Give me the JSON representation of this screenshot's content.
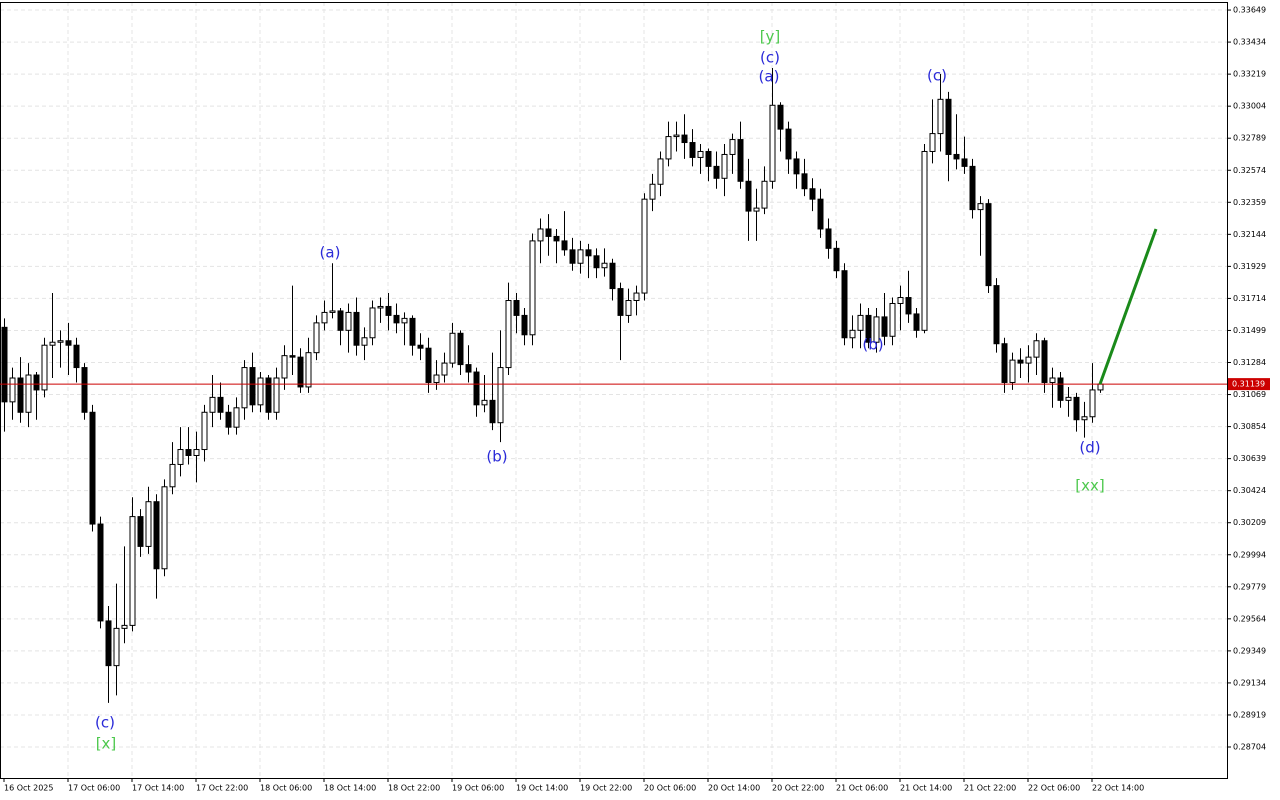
{
  "chart_data": {
    "type": "candlestick",
    "ylim": [
      0.28496,
      0.33703
    ],
    "yticks": [
      0.33649,
      0.33434,
      0.33219,
      0.33004,
      0.32789,
      0.32574,
      0.32359,
      0.32144,
      0.31929,
      0.31714,
      0.31499,
      0.31284,
      0.31069,
      0.30854,
      0.30639,
      0.30424,
      0.30209,
      0.29994,
      0.29779,
      0.29564,
      0.29349,
      0.29134,
      0.28919,
      0.28704
    ],
    "grid": true,
    "bull_color": "#ffffff",
    "bear_color": "#000000",
    "categories": [
      "16 Oct 2025",
      null,
      null,
      null,
      null,
      null,
      null,
      null,
      "17 Oct 06:00",
      null,
      null,
      null,
      null,
      null,
      null,
      null,
      "17 Oct 14:00",
      null,
      null,
      null,
      null,
      null,
      null,
      null,
      "17 Oct 22:00",
      null,
      null,
      null,
      null,
      null,
      null,
      null,
      "18 Oct 06:00",
      null,
      null,
      null,
      null,
      null,
      null,
      null,
      "18 Oct 14:00",
      null,
      null,
      null,
      null,
      null,
      null,
      null,
      "18 Oct 22:00",
      null,
      null,
      null,
      null,
      null,
      null,
      null,
      "19 Oct 06:00",
      null,
      null,
      null,
      null,
      null,
      null,
      null,
      "19 Oct 14:00",
      null,
      null,
      null,
      null,
      null,
      null,
      null,
      "19 Oct 22:00",
      null,
      null,
      null,
      null,
      null,
      null,
      null,
      "20 Oct 06:00",
      null,
      null,
      null,
      null,
      null,
      null,
      null,
      "20 Oct 14:00",
      null,
      null,
      null,
      null,
      null,
      null,
      null,
      "20 Oct 22:00",
      null,
      null,
      null,
      null,
      null,
      null,
      null,
      "21 Oct 06:00",
      null,
      null,
      null,
      null,
      null,
      null,
      null,
      "21 Oct 14:00",
      null,
      null,
      null,
      null,
      null,
      null,
      null,
      "21 Oct 22:00",
      null,
      null,
      null,
      null,
      null,
      null,
      null,
      "22 Oct 06:00",
      null,
      null,
      null,
      null,
      null,
      null,
      null,
      "22 Oct 14:00",
      null
    ],
    "ohlc": [
      [
        0.3152,
        0.3158,
        0.3082,
        0.3102
      ],
      [
        0.3102,
        0.3125,
        0.309,
        0.3118
      ],
      [
        0.3118,
        0.3132,
        0.3088,
        0.3095
      ],
      [
        0.3095,
        0.3128,
        0.3085,
        0.312
      ],
      [
        0.312,
        0.3122,
        0.309,
        0.311
      ],
      [
        0.311,
        0.3145,
        0.3105,
        0.314
      ],
      [
        0.314,
        0.3175,
        0.3118,
        0.3142
      ],
      [
        0.3142,
        0.315,
        0.3125,
        0.3143
      ],
      [
        0.3143,
        0.3155,
        0.312,
        0.314
      ],
      [
        0.314,
        0.3145,
        0.3115,
        0.3125
      ],
      [
        0.3125,
        0.3128,
        0.309,
        0.3095
      ],
      [
        0.3095,
        0.31,
        0.3015,
        0.302
      ],
      [
        0.302,
        0.3025,
        0.295,
        0.2955
      ],
      [
        0.2955,
        0.2965,
        0.29,
        0.2925
      ],
      [
        0.2925,
        0.298,
        0.2905,
        0.295
      ],
      [
        0.295,
        0.3005,
        0.294,
        0.2952
      ],
      [
        0.2952,
        0.3038,
        0.2948,
        0.3025
      ],
      [
        0.3025,
        0.303,
        0.2998,
        0.3005
      ],
      [
        0.3005,
        0.3045,
        0.3,
        0.3035
      ],
      [
        0.3035,
        0.304,
        0.297,
        0.299
      ],
      [
        0.299,
        0.305,
        0.2985,
        0.3045
      ],
      [
        0.3045,
        0.3075,
        0.304,
        0.306
      ],
      [
        0.306,
        0.3085,
        0.3052,
        0.307
      ],
      [
        0.307,
        0.3085,
        0.306,
        0.3066
      ],
      [
        0.3066,
        0.3082,
        0.3048,
        0.307
      ],
      [
        0.307,
        0.31,
        0.3062,
        0.3095
      ],
      [
        0.3095,
        0.312,
        0.3085,
        0.3105
      ],
      [
        0.3105,
        0.3115,
        0.309,
        0.3095
      ],
      [
        0.3095,
        0.31,
        0.308,
        0.3085
      ],
      [
        0.3085,
        0.3105,
        0.308,
        0.3098
      ],
      [
        0.3098,
        0.313,
        0.309,
        0.3125
      ],
      [
        0.3125,
        0.3135,
        0.3095,
        0.31
      ],
      [
        0.31,
        0.3122,
        0.3095,
        0.3118
      ],
      [
        0.3118,
        0.312,
        0.309,
        0.3095
      ],
      [
        0.3095,
        0.3125,
        0.309,
        0.3118
      ],
      [
        0.3118,
        0.314,
        0.311,
        0.3133
      ],
      [
        0.3133,
        0.318,
        0.312,
        0.3132
      ],
      [
        0.3132,
        0.3138,
        0.3108,
        0.3112
      ],
      [
        0.3112,
        0.3145,
        0.3108,
        0.3135
      ],
      [
        0.3135,
        0.316,
        0.313,
        0.3155
      ],
      [
        0.3155,
        0.317,
        0.315,
        0.3162
      ],
      [
        0.3162,
        0.3195,
        0.3158,
        0.3163
      ],
      [
        0.3163,
        0.3165,
        0.314,
        0.315
      ],
      [
        0.315,
        0.3168,
        0.3135,
        0.3162
      ],
      [
        0.3162,
        0.3172,
        0.3133,
        0.314
      ],
      [
        0.314,
        0.3152,
        0.313,
        0.3145
      ],
      [
        0.3145,
        0.317,
        0.314,
        0.3165
      ],
      [
        0.3165,
        0.3172,
        0.3155,
        0.3166
      ],
      [
        0.3166,
        0.3175,
        0.315,
        0.316
      ],
      [
        0.316,
        0.3168,
        0.3148,
        0.3155
      ],
      [
        0.3155,
        0.3162,
        0.314,
        0.3158
      ],
      [
        0.3158,
        0.316,
        0.3133,
        0.314
      ],
      [
        0.314,
        0.3148,
        0.313,
        0.3138
      ],
      [
        0.3138,
        0.3145,
        0.3108,
        0.3115
      ],
      [
        0.3115,
        0.313,
        0.311,
        0.312
      ],
      [
        0.312,
        0.3135,
        0.3115,
        0.3128
      ],
      [
        0.3128,
        0.3155,
        0.3125,
        0.3148
      ],
      [
        0.3148,
        0.315,
        0.312,
        0.3127
      ],
      [
        0.3127,
        0.314,
        0.3115,
        0.3122
      ],
      [
        0.3122,
        0.3125,
        0.3092,
        0.31
      ],
      [
        0.31,
        0.312,
        0.3095,
        0.3103
      ],
      [
        0.3103,
        0.3135,
        0.3083,
        0.3088
      ],
      [
        0.3088,
        0.315,
        0.3075,
        0.3125
      ],
      [
        0.3125,
        0.3182,
        0.312,
        0.317
      ],
      [
        0.317,
        0.3175,
        0.3148,
        0.316
      ],
      [
        0.316,
        0.3165,
        0.314,
        0.3147
      ],
      [
        0.3147,
        0.3215,
        0.314,
        0.321
      ],
      [
        0.321,
        0.3225,
        0.3195,
        0.3218
      ],
      [
        0.3218,
        0.3228,
        0.32,
        0.3213
      ],
      [
        0.3213,
        0.3218,
        0.3195,
        0.321
      ],
      [
        0.321,
        0.323,
        0.32,
        0.3204
      ],
      [
        0.3204,
        0.3212,
        0.319,
        0.3195
      ],
      [
        0.3195,
        0.321,
        0.3188,
        0.3204
      ],
      [
        0.3204,
        0.3208,
        0.3185,
        0.32
      ],
      [
        0.32,
        0.3205,
        0.3185,
        0.3192
      ],
      [
        0.3192,
        0.3205,
        0.3186,
        0.3195
      ],
      [
        0.3195,
        0.3198,
        0.317,
        0.3178
      ],
      [
        0.3178,
        0.3182,
        0.313,
        0.316
      ],
      [
        0.316,
        0.3178,
        0.3155,
        0.317
      ],
      [
        0.317,
        0.318,
        0.316,
        0.3175
      ],
      [
        0.3175,
        0.3242,
        0.317,
        0.3238
      ],
      [
        0.3238,
        0.3255,
        0.323,
        0.3248
      ],
      [
        0.3248,
        0.327,
        0.324,
        0.3265
      ],
      [
        0.3265,
        0.329,
        0.326,
        0.328
      ],
      [
        0.328,
        0.329,
        0.327,
        0.3281
      ],
      [
        0.3281,
        0.3295,
        0.3265,
        0.3276
      ],
      [
        0.3276,
        0.3285,
        0.326,
        0.3266
      ],
      [
        0.3266,
        0.3275,
        0.3255,
        0.327
      ],
      [
        0.327,
        0.3272,
        0.325,
        0.326
      ],
      [
        0.326,
        0.327,
        0.3245,
        0.3252
      ],
      [
        0.3252,
        0.3275,
        0.324,
        0.3268
      ],
      [
        0.3268,
        0.3282,
        0.3255,
        0.3278
      ],
      [
        0.3278,
        0.329,
        0.3245,
        0.325
      ],
      [
        0.325,
        0.3265,
        0.321,
        0.323
      ],
      [
        0.323,
        0.3245,
        0.321,
        0.3232
      ],
      [
        0.3232,
        0.326,
        0.3228,
        0.325
      ],
      [
        0.325,
        0.3326,
        0.3245,
        0.3301
      ],
      [
        0.3301,
        0.3303,
        0.327,
        0.3285
      ],
      [
        0.3285,
        0.329,
        0.3255,
        0.3265
      ],
      [
        0.3265,
        0.327,
        0.3245,
        0.3255
      ],
      [
        0.3255,
        0.3265,
        0.324,
        0.3245
      ],
      [
        0.3245,
        0.3252,
        0.323,
        0.3238
      ],
      [
        0.3238,
        0.3245,
        0.3212,
        0.3218
      ],
      [
        0.3218,
        0.3225,
        0.3198,
        0.3205
      ],
      [
        0.3205,
        0.321,
        0.3185,
        0.319
      ],
      [
        0.319,
        0.3195,
        0.314,
        0.3145
      ],
      [
        0.3145,
        0.316,
        0.3138,
        0.315
      ],
      [
        0.315,
        0.3168,
        0.3138,
        0.316
      ],
      [
        0.316,
        0.3165,
        0.3138,
        0.3142
      ],
      [
        0.3142,
        0.3165,
        0.3135,
        0.3159
      ],
      [
        0.3159,
        0.3175,
        0.314,
        0.3146
      ],
      [
        0.3146,
        0.3172,
        0.314,
        0.3168
      ],
      [
        0.3168,
        0.318,
        0.315,
        0.3172
      ],
      [
        0.3172,
        0.319,
        0.3155,
        0.3161
      ],
      [
        0.3161,
        0.3165,
        0.3145,
        0.315
      ],
      [
        0.315,
        0.3275,
        0.3148,
        0.327
      ],
      [
        0.327,
        0.3305,
        0.3262,
        0.3282
      ],
      [
        0.3282,
        0.3322,
        0.327,
        0.3305
      ],
      [
        0.3305,
        0.331,
        0.325,
        0.3268
      ],
      [
        0.3268,
        0.3295,
        0.3258,
        0.3265
      ],
      [
        0.3265,
        0.328,
        0.3255,
        0.326
      ],
      [
        0.326,
        0.3265,
        0.3225,
        0.3231
      ],
      [
        0.3231,
        0.324,
        0.32,
        0.3235
      ],
      [
        0.3235,
        0.3238,
        0.3175,
        0.318
      ],
      [
        0.318,
        0.3185,
        0.3135,
        0.3141
      ],
      [
        0.3141,
        0.3145,
        0.3108,
        0.3115
      ],
      [
        0.3115,
        0.3135,
        0.311,
        0.313
      ],
      [
        0.313,
        0.3138,
        0.3118,
        0.3128
      ],
      [
        0.3128,
        0.314,
        0.3115,
        0.3132
      ],
      [
        0.3132,
        0.3148,
        0.312,
        0.3143
      ],
      [
        0.3143,
        0.3145,
        0.3108,
        0.3115
      ],
      [
        0.3115,
        0.3125,
        0.3098,
        0.3118
      ],
      [
        0.3118,
        0.3122,
        0.3098,
        0.3103
      ],
      [
        0.3103,
        0.3112,
        0.3092,
        0.3105
      ],
      [
        0.3105,
        0.3108,
        0.3082,
        0.309
      ],
      [
        0.309,
        0.3102,
        0.3078,
        0.3092
      ],
      [
        0.3092,
        0.3128,
        0.3088,
        0.311
      ],
      [
        0.311,
        0.3115,
        0.3108,
        0.31139
      ]
    ],
    "current_price": 0.31139,
    "current_price_color": "#cc0000",
    "projection": {
      "color": "#1a8a1a",
      "values": [
        0.31139,
        0.3218
      ]
    },
    "annotations": [
      {
        "text": "(a)",
        "color": "#2a2ad8"
      },
      {
        "text": "(b)",
        "color": "#2a2ad8"
      },
      {
        "text": "(c)",
        "color": "#2a2ad8"
      },
      {
        "text": "[x]",
        "color": "#4cc84c"
      },
      {
        "text": "[y]",
        "color": "#4cc84c"
      },
      {
        "text": "(c)",
        "color": "#2a2ad8"
      },
      {
        "text": "(a)",
        "color": "#2a2ad8"
      },
      {
        "text": "(c)",
        "color": "#2a2ad8"
      },
      {
        "text": "(b)",
        "color": "#2a2ad8"
      },
      {
        "text": "(d)",
        "color": "#2a2ad8"
      },
      {
        "text": "[xx]",
        "color": "#4cc84c"
      }
    ]
  }
}
